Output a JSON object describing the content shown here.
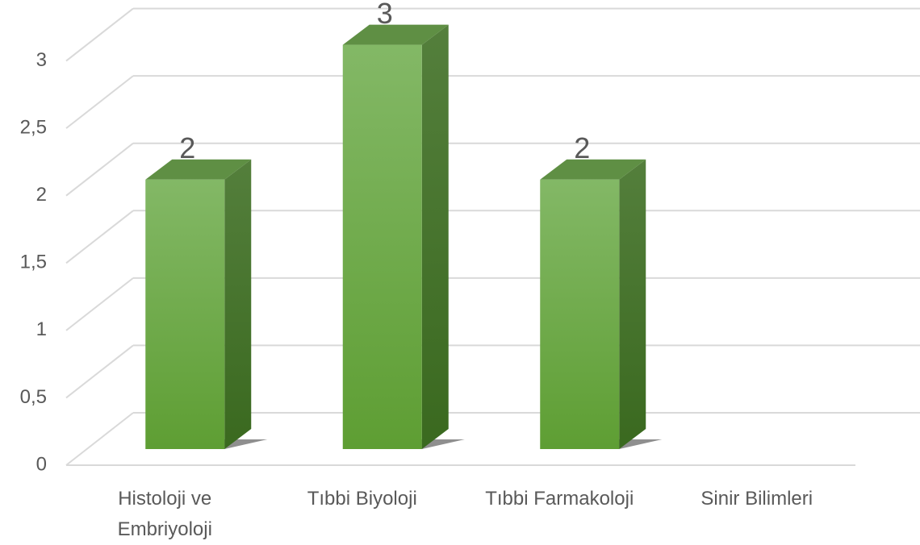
{
  "chart_data": {
    "type": "bar3d",
    "categories": [
      "Histoloji ve Embriyoloji",
      "Tıbbi Biyoloji",
      "Tıbbi Farmakoloji",
      "Sinir Bilimleri"
    ],
    "values": [
      2,
      3,
      2,
      0
    ],
    "value_labels": [
      "2",
      "3",
      "2",
      null
    ],
    "color": "#6aaa3c",
    "ylim": [
      0,
      3.5
    ],
    "yticks": [
      0,
      {
        "value": 0.5,
        "label": "0,5"
      },
      1,
      {
        "value": 1.5,
        "label": "1,5"
      },
      2,
      {
        "value": 2.5,
        "label": "2,5"
      },
      3
    ],
    "grid": true
  }
}
